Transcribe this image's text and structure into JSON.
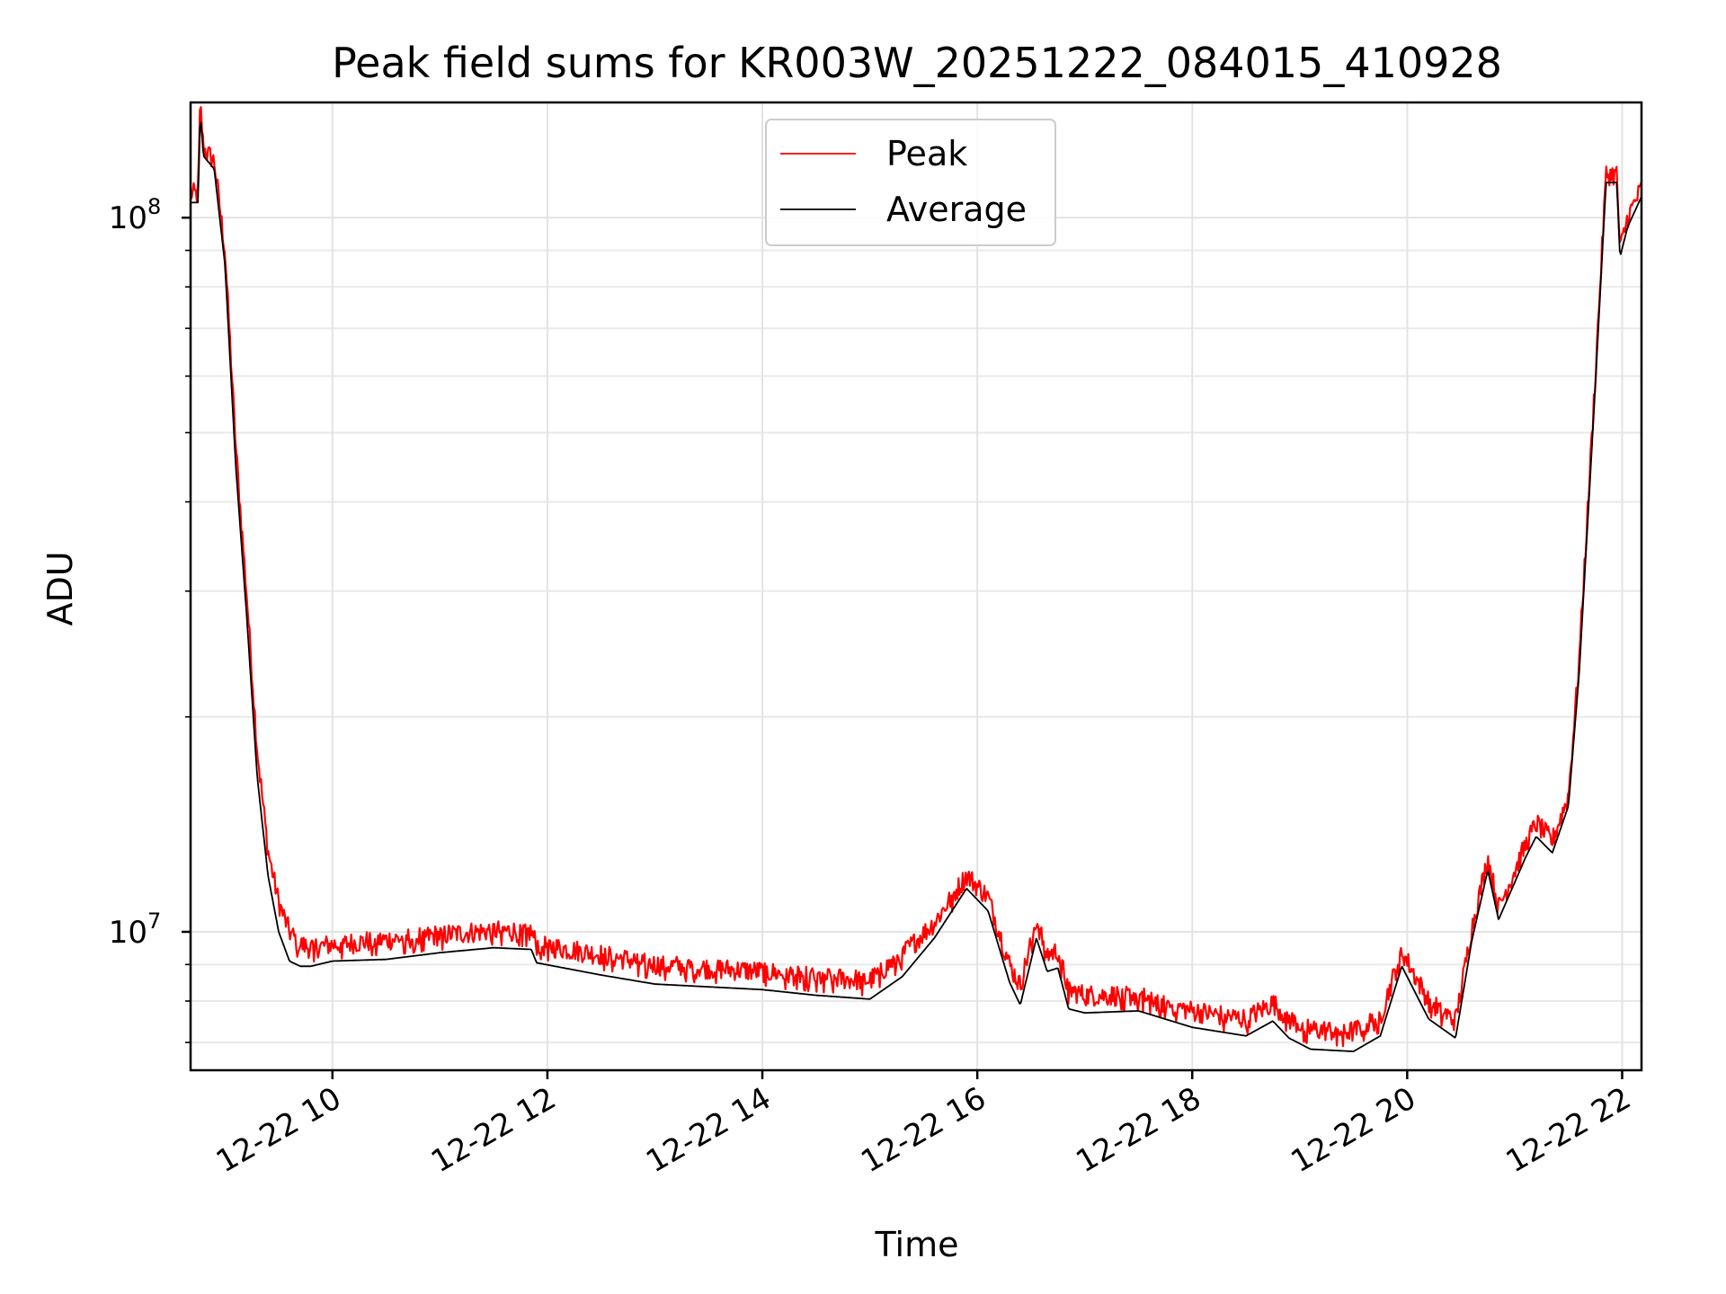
{
  "chart_data": {
    "type": "line",
    "title": "Peak field sums for KR003W_20251222_084015_410928",
    "xlabel": "Time",
    "ylabel": "ADU",
    "yscale": "log",
    "xlim": [
      8.68,
      22.18
    ],
    "ylim": [
      6400000,
      145000000
    ],
    "grid": true,
    "legend_location": "upper center",
    "x_units": "hour of day (2025-12-22)",
    "x_ticks": [
      {
        "value": 10,
        "label": "12-22 10"
      },
      {
        "value": 12,
        "label": "12-22 12"
      },
      {
        "value": 14,
        "label": "12-22 14"
      },
      {
        "value": 16,
        "label": "12-22 16"
      },
      {
        "value": 18,
        "label": "12-22 18"
      },
      {
        "value": 20,
        "label": "12-22 20"
      },
      {
        "value": 22,
        "label": "12-22 22"
      }
    ],
    "y_ticks": [
      {
        "value": 10000000,
        "base": "10",
        "exp": "7"
      },
      {
        "value": 100000000,
        "base": "10",
        "exp": "8"
      }
    ],
    "series": [
      {
        "name": "Peak",
        "color": "#ff0000",
        "jitter": 0.035,
        "points": [
          [
            8.68,
            108000000
          ],
          [
            8.75,
            108000000
          ],
          [
            8.77,
            145000000
          ],
          [
            8.8,
            125000000
          ],
          [
            8.9,
            120000000
          ],
          [
            9.0,
            90000000
          ],
          [
            9.1,
            48000000
          ],
          [
            9.2,
            30000000
          ],
          [
            9.3,
            18000000
          ],
          [
            9.4,
            13000000
          ],
          [
            9.5,
            11000000
          ],
          [
            9.6,
            10000000
          ],
          [
            9.7,
            9600000
          ],
          [
            9.8,
            9500000
          ],
          [
            10.0,
            9600000
          ],
          [
            10.5,
            9750000
          ],
          [
            11.0,
            9900000
          ],
          [
            11.5,
            10050000
          ],
          [
            11.85,
            10000000
          ],
          [
            11.9,
            9600000
          ],
          [
            12.5,
            9300000
          ],
          [
            13.0,
            9000000
          ],
          [
            14.0,
            8800000
          ],
          [
            14.5,
            8650000
          ],
          [
            15.0,
            8550000
          ],
          [
            15.3,
            9300000
          ],
          [
            15.6,
            10300000
          ],
          [
            15.9,
            12000000
          ],
          [
            16.1,
            11200000
          ],
          [
            16.3,
            9000000
          ],
          [
            16.4,
            8400000
          ],
          [
            16.55,
            10400000
          ],
          [
            16.65,
            9300000
          ],
          [
            16.75,
            9400000
          ],
          [
            16.85,
            8300000
          ],
          [
            17.0,
            8150000
          ],
          [
            17.5,
            8150000
          ],
          [
            18.0,
            7750000
          ],
          [
            18.5,
            7550000
          ],
          [
            18.75,
            7950000
          ],
          [
            18.9,
            7550000
          ],
          [
            19.1,
            7300000
          ],
          [
            19.5,
            7250000
          ],
          [
            19.75,
            7600000
          ],
          [
            19.95,
            9400000
          ],
          [
            20.2,
            8000000
          ],
          [
            20.45,
            7500000
          ],
          [
            20.6,
            10100000
          ],
          [
            20.75,
            12700000
          ],
          [
            20.85,
            10800000
          ],
          [
            21.1,
            13200000
          ],
          [
            21.2,
            14200000
          ],
          [
            21.35,
            13400000
          ],
          [
            21.5,
            15500000
          ],
          [
            21.6,
            24000000
          ],
          [
            21.75,
            60000000
          ],
          [
            21.85,
            115000000
          ],
          [
            21.95,
            115000000
          ],
          [
            21.98,
            90000000
          ],
          [
            22.05,
            100000000
          ],
          [
            22.18,
            110000000
          ]
        ]
      },
      {
        "name": "Average",
        "color": "#000000",
        "jitter": 0,
        "points": [
          [
            8.68,
            105000000
          ],
          [
            8.75,
            105000000
          ],
          [
            8.77,
            140000000
          ],
          [
            8.8,
            122000000
          ],
          [
            8.9,
            117000000
          ],
          [
            9.0,
            86000000
          ],
          [
            9.1,
            45000000
          ],
          [
            9.2,
            28000000
          ],
          [
            9.3,
            16500000
          ],
          [
            9.4,
            12000000
          ],
          [
            9.5,
            10000000
          ],
          [
            9.6,
            9100000
          ],
          [
            9.7,
            8950000
          ],
          [
            9.8,
            8950000
          ],
          [
            10.0,
            9100000
          ],
          [
            10.5,
            9150000
          ],
          [
            11.0,
            9350000
          ],
          [
            11.5,
            9500000
          ],
          [
            11.85,
            9450000
          ],
          [
            11.9,
            9050000
          ],
          [
            12.5,
            8700000
          ],
          [
            13.0,
            8450000
          ],
          [
            14.0,
            8300000
          ],
          [
            14.5,
            8150000
          ],
          [
            15.0,
            8050000
          ],
          [
            15.3,
            8650000
          ],
          [
            15.6,
            9800000
          ],
          [
            15.9,
            11500000
          ],
          [
            16.1,
            10700000
          ],
          [
            16.3,
            8500000
          ],
          [
            16.4,
            7900000
          ],
          [
            16.55,
            9800000
          ],
          [
            16.65,
            8800000
          ],
          [
            16.75,
            8900000
          ],
          [
            16.85,
            7800000
          ],
          [
            17.0,
            7700000
          ],
          [
            17.5,
            7750000
          ],
          [
            18.0,
            7350000
          ],
          [
            18.5,
            7150000
          ],
          [
            18.75,
            7500000
          ],
          [
            18.9,
            7100000
          ],
          [
            19.1,
            6850000
          ],
          [
            19.5,
            6800000
          ],
          [
            19.75,
            7150000
          ],
          [
            19.95,
            8950000
          ],
          [
            20.2,
            7550000
          ],
          [
            20.45,
            7100000
          ],
          [
            20.6,
            9700000
          ],
          [
            20.75,
            12200000
          ],
          [
            20.85,
            10400000
          ],
          [
            21.1,
            12700000
          ],
          [
            21.2,
            13600000
          ],
          [
            21.35,
            12900000
          ],
          [
            21.5,
            15000000
          ],
          [
            21.6,
            23000000
          ],
          [
            21.75,
            58000000
          ],
          [
            21.85,
            112000000
          ],
          [
            21.95,
            112000000
          ],
          [
            21.98,
            88000000
          ],
          [
            22.05,
            97000000
          ],
          [
            22.18,
            107000000
          ]
        ]
      }
    ]
  }
}
